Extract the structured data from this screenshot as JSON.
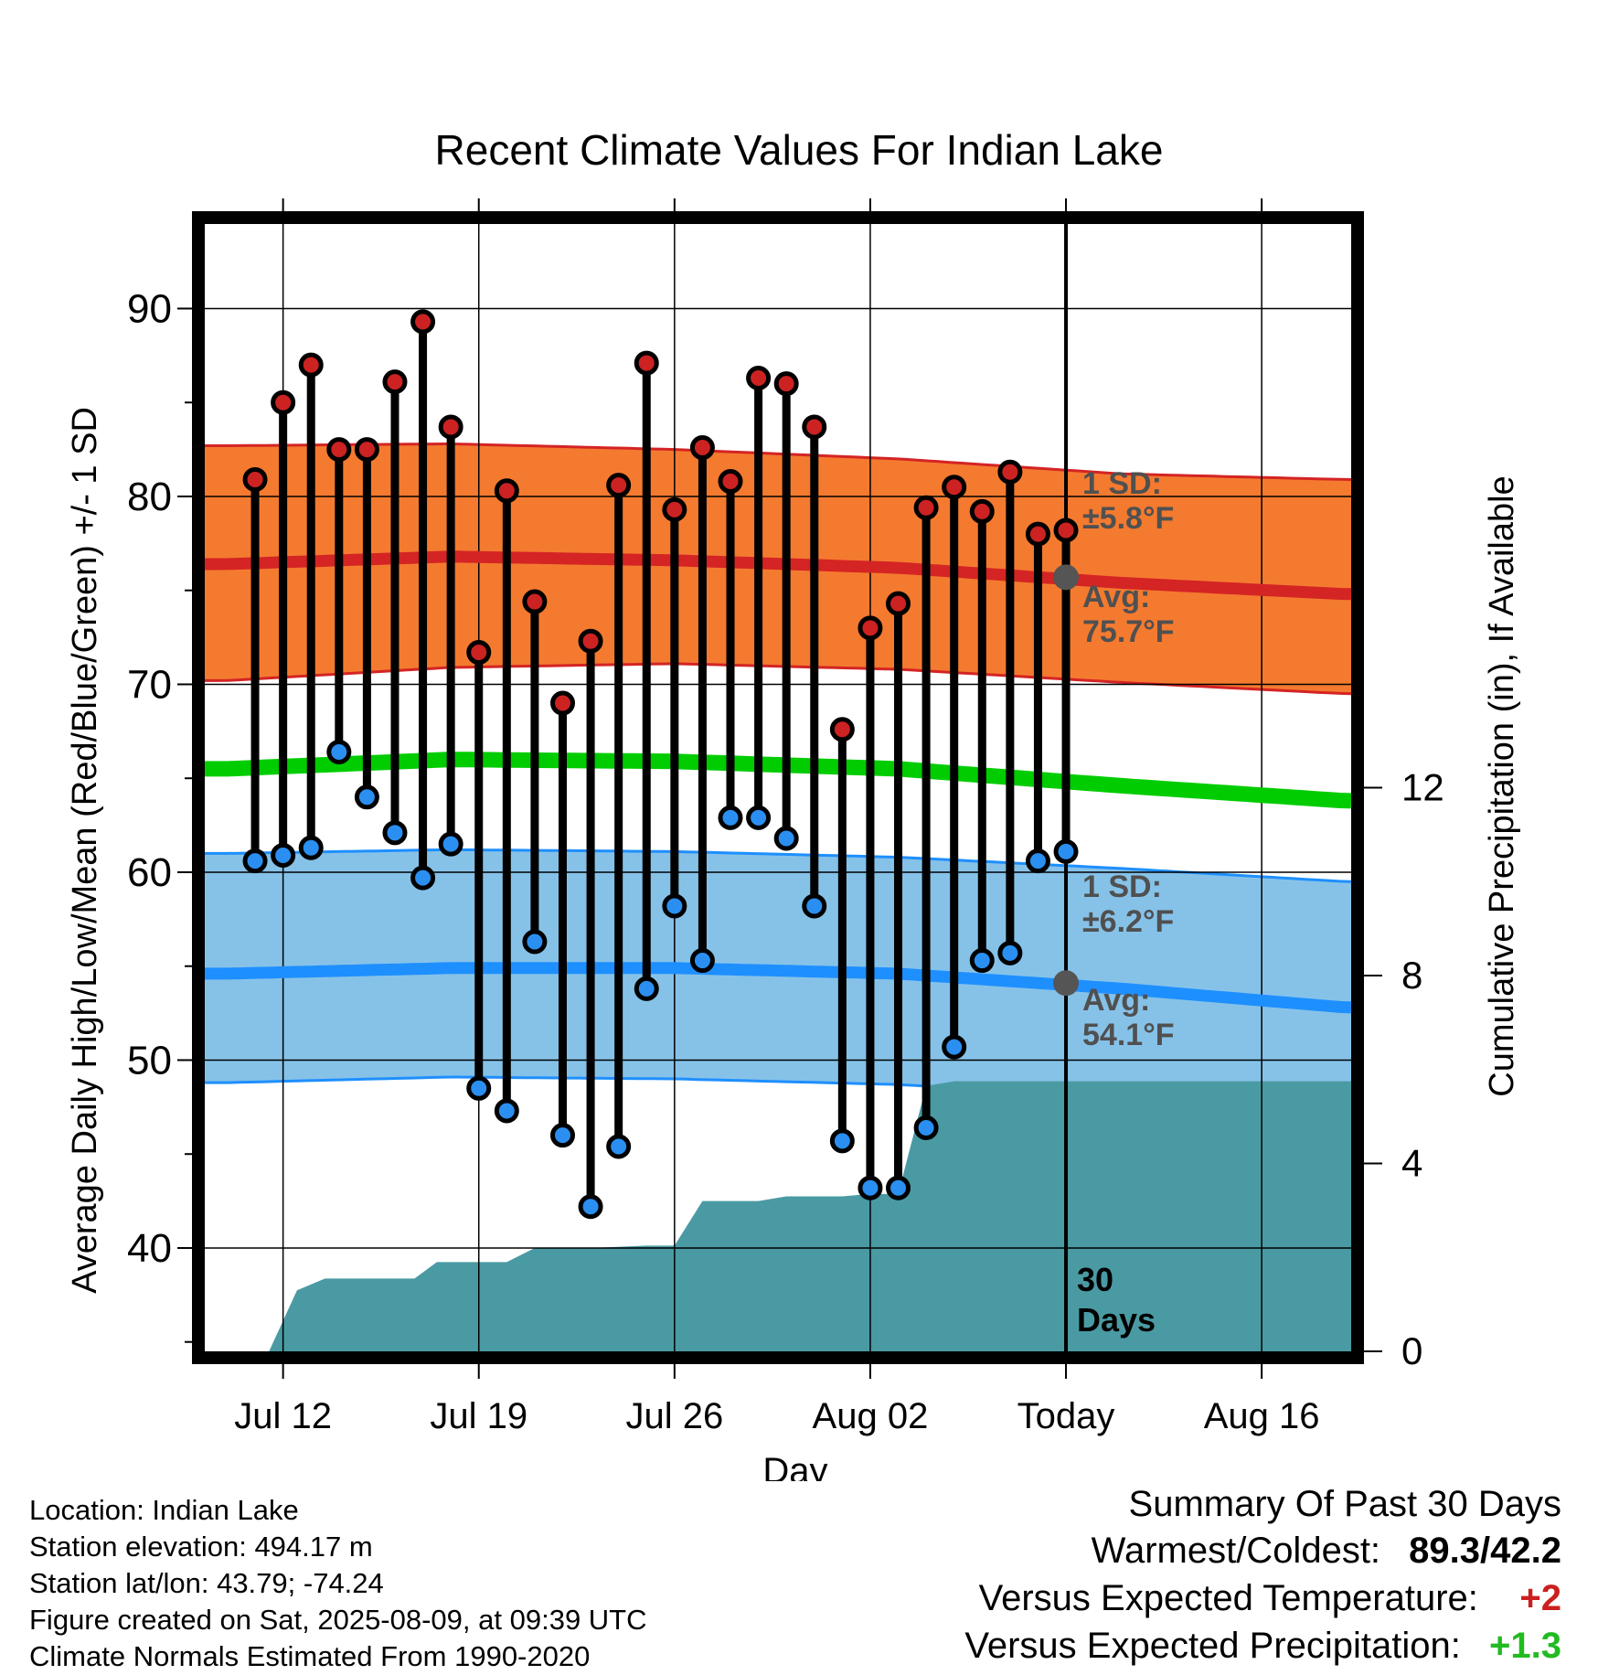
{
  "chart_data": {
    "type": "line",
    "title": "Recent Climate Values For Indian Lake",
    "xlabel": "Day",
    "ylabel": "Average Daily High/Low/Mean (Red/Blue/Green) +/- 1 SD",
    "y2label": "Cumulative Precipitation (in), If Available",
    "x_tick_labels": [
      "Jul 12",
      "Jul 19",
      "Jul 26",
      "Aug 02",
      "Today",
      "Aug 16"
    ],
    "x_tick_days": [
      2,
      9,
      16,
      23,
      30,
      37
    ],
    "y_ticks": [
      40,
      50,
      60,
      70,
      80,
      90
    ],
    "ylim": [
      34.5,
      94.5
    ],
    "y2_ticks": [
      0,
      4,
      8,
      12
    ],
    "y2lim": [
      0,
      24
    ],
    "xlim": [
      -0.8,
      40.2
    ],
    "grid": true,
    "today_label": "30\nDays",
    "days": [
      1,
      2,
      3,
      4,
      5,
      6,
      7,
      8,
      9,
      10,
      11,
      12,
      13,
      14,
      15,
      16,
      17,
      18,
      19,
      20,
      21,
      22,
      23,
      24,
      25,
      26,
      27,
      28,
      29
    ],
    "observed_high": [
      80.9,
      85.0,
      87.0,
      82.5,
      82.5,
      86.1,
      89.3,
      83.7,
      71.7,
      80.3,
      74.4,
      69.0,
      72.3,
      80.6,
      87.1,
      79.3,
      82.6,
      80.8,
      86.3,
      86.0,
      83.7,
      67.6,
      73.0,
      74.3,
      79.4,
      80.5,
      79.2,
      81.3,
      78.0
    ],
    "observed_low": [
      60.6,
      60.9,
      61.3,
      66.4,
      64.0,
      62.1,
      59.7,
      61.5,
      48.5,
      47.3,
      56.3,
      46.0,
      42.2,
      45.4,
      53.8,
      58.2,
      55.3,
      62.9,
      62.9,
      61.8,
      58.2,
      45.7,
      43.2,
      43.2,
      46.4,
      50.7,
      55.3,
      55.7,
      60.6
    ],
    "observed_extra": {
      "day": 30,
      "high": 78.2,
      "low": 61.1
    },
    "normal_days": [
      0,
      8,
      16,
      24,
      32,
      40
    ],
    "normal_high": [
      76.4,
      76.8,
      76.6,
      76.2,
      75.4,
      74.8
    ],
    "normal_low": [
      54.6,
      54.9,
      54.9,
      54.6,
      53.8,
      52.8
    ],
    "normal_mean": [
      65.5,
      66.0,
      65.9,
      65.5,
      64.6,
      63.8
    ],
    "high_sd_band": {
      "upper": [
        82.7,
        82.8,
        82.5,
        82.0,
        81.2,
        80.9
      ],
      "lower": [
        70.2,
        70.9,
        71.1,
        70.8,
        70.1,
        69.5
      ]
    },
    "low_sd_band": {
      "upper": [
        61.0,
        61.2,
        61.1,
        60.8,
        60.2,
        59.5
      ],
      "lower": [
        48.8,
        49.1,
        49.0,
        48.7,
        48.0,
        46.9
      ]
    },
    "precip_days": [
      1.5,
      2.5,
      3.5,
      5,
      6.7,
      7.5,
      9,
      10,
      11,
      13,
      15,
      16,
      17,
      18,
      19,
      20,
      21,
      22,
      23,
      24,
      25,
      26,
      27,
      28,
      29,
      30,
      40.2
    ],
    "precip_cum": [
      0,
      1.3,
      1.55,
      1.55,
      1.55,
      1.9,
      1.9,
      1.9,
      2.2,
      2.2,
      2.25,
      2.25,
      3.2,
      3.2,
      3.2,
      3.3,
      3.3,
      3.3,
      3.35,
      3.35,
      5.65,
      5.75,
      5.75,
      5.75,
      5.75,
      5.75,
      5.75
    ],
    "annotations": {
      "high_sd": [
        "1 SD:",
        "±5.8°F"
      ],
      "high_avg": [
        "Avg:",
        "75.7°F"
      ],
      "low_sd": [
        "1 SD:",
        "±6.2°F"
      ],
      "low_avg": [
        "Avg:",
        "54.1°F"
      ]
    },
    "colors": {
      "high_band": "#f47a2f",
      "high_line": "#d42424",
      "low_band": "#86c2e8",
      "low_line": "#1e8fff",
      "mean_line": "#00cc00",
      "precip": "#4a9aa3",
      "high_dot": "#cc2222",
      "low_dot": "#2a8ff0",
      "annotation": "#505050"
    }
  },
  "footer": {
    "location": "Location: Indian Lake",
    "elevation": "Station elevation: 494.17 m",
    "latlon": "Station lat/lon: 43.79; -74.24",
    "created": "Figure created on Sat, 2025-08-09, at 09:39 UTC",
    "normals": "Climate Normals Estimated From 1990-2020"
  },
  "summary": {
    "title": "Summary Of Past 30 Days",
    "warm_cold_label": "Warmest/Coldest:",
    "warm_cold_value": "89.3/42.2",
    "temp_label": "Versus Expected Temperature:",
    "temp_value": "+2",
    "precip_label": "Versus Expected Precipitation:",
    "precip_value": "+1.3"
  }
}
